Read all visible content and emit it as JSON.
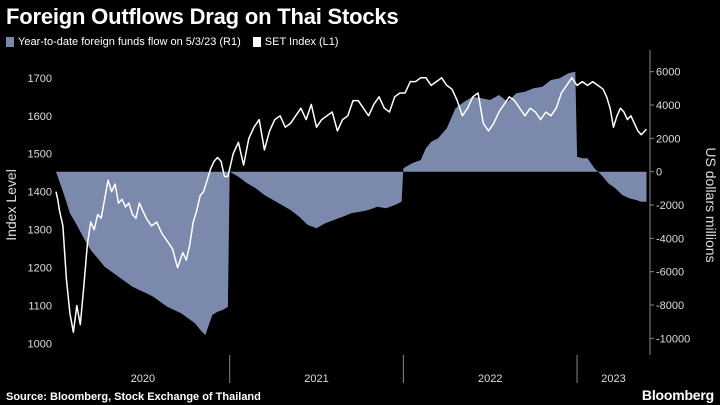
{
  "title": "Foreign Outflows Drag on Thai Stocks",
  "legend": {
    "fund_flow": "Year-to-date foreign funds flow on 5/3/23 (R1)",
    "set_index": "SET Index  (L1)"
  },
  "source": "Source: Bloomberg, Stock Exchange of Thailand",
  "brand": "Bloomberg",
  "colors": {
    "background": "#000000",
    "fund_flow_fill": "#7b8aac",
    "set_index_line": "#ffffff",
    "axis_text": "#dddddd"
  },
  "chart_data": {
    "type": "line",
    "left_axis": {
      "label": "Index Level",
      "ylim": [
        970,
        1760
      ],
      "ticks": [
        1000,
        1100,
        1200,
        1300,
        1400,
        1500,
        1600,
        1700
      ]
    },
    "right_axis": {
      "label": "US dollars millions",
      "ylim": [
        -11000,
        7000
      ],
      "ticks": [
        -10000,
        -8000,
        -6000,
        -4000,
        -2000,
        0,
        2000,
        4000,
        6000
      ]
    },
    "x_axis": {
      "range": [
        2020.0,
        2023.42
      ],
      "year_labels": [
        "2020",
        "2021",
        "2022",
        "2023"
      ],
      "year_starts": [
        2020,
        2021,
        2022,
        2023
      ]
    },
    "series": [
      {
        "name": "Year-to-date foreign funds flow on 5/3/23 (R1)",
        "type": "area",
        "axis": "right",
        "x": [
          2020.0,
          2020.02,
          2020.05,
          2020.08,
          2020.12,
          2020.16,
          2020.2,
          2020.24,
          2020.28,
          2020.32,
          2020.36,
          2020.4,
          2020.44,
          2020.48,
          2020.52,
          2020.56,
          2020.6,
          2020.64,
          2020.68,
          2020.72,
          2020.76,
          2020.8,
          2020.84,
          2020.86,
          2020.88,
          2020.9,
          2020.93,
          2020.96,
          2020.99,
          2021.0,
          2021.05,
          2021.1,
          2021.15,
          2021.2,
          2021.25,
          2021.3,
          2021.35,
          2021.4,
          2021.45,
          2021.5,
          2021.55,
          2021.6,
          2021.65,
          2021.7,
          2021.75,
          2021.8,
          2021.85,
          2021.9,
          2021.95,
          2021.99,
          2022.0,
          2022.05,
          2022.1,
          2022.13,
          2022.16,
          2022.2,
          2022.25,
          2022.3,
          2022.35,
          2022.4,
          2022.45,
          2022.5,
          2022.55,
          2022.6,
          2022.65,
          2022.7,
          2022.75,
          2022.8,
          2022.85,
          2022.9,
          2022.95,
          2022.99,
          2023.0,
          2023.03,
          2023.06,
          2023.1,
          2023.14,
          2023.18,
          2023.22,
          2023.26,
          2023.3,
          2023.34,
          2023.37,
          2023.4
        ],
        "values": [
          0,
          -600,
          -1500,
          -2500,
          -3200,
          -4000,
          -4700,
          -5200,
          -5700,
          -6000,
          -6300,
          -6600,
          -6900,
          -7100,
          -7300,
          -7500,
          -7800,
          -8100,
          -8300,
          -8500,
          -8800,
          -9100,
          -9600,
          -9800,
          -9200,
          -8600,
          -8400,
          -8300,
          -8100,
          0,
          -300,
          -700,
          -1000,
          -1400,
          -1700,
          -2000,
          -2300,
          -2700,
          -3200,
          -3400,
          -3100,
          -2900,
          -2700,
          -2500,
          -2400,
          -2300,
          -2100,
          -2200,
          -2000,
          -1800,
          200,
          500,
          700,
          1400,
          1800,
          2000,
          2600,
          3800,
          4200,
          4500,
          4400,
          4300,
          4600,
          4200,
          4700,
          4800,
          5000,
          5100,
          5500,
          5600,
          5900,
          6000,
          900,
          800,
          800,
          200,
          -200,
          -700,
          -1000,
          -1400,
          -1600,
          -1700,
          -1800,
          -1800
        ]
      },
      {
        "name": "SET Index  (L1)",
        "type": "line",
        "axis": "left",
        "x": [
          2020.0,
          2020.01,
          2020.02,
          2020.04,
          2020.06,
          2020.08,
          2020.1,
          2020.12,
          2020.14,
          2020.16,
          2020.18,
          2020.2,
          2020.22,
          2020.24,
          2020.26,
          2020.28,
          2020.3,
          2020.32,
          2020.34,
          2020.36,
          2020.38,
          2020.4,
          2020.42,
          2020.44,
          2020.46,
          2020.48,
          2020.5,
          2020.52,
          2020.55,
          2020.58,
          2020.61,
          2020.64,
          2020.67,
          2020.7,
          2020.73,
          2020.75,
          2020.77,
          2020.79,
          2020.81,
          2020.83,
          2020.85,
          2020.87,
          2020.89,
          2020.91,
          2020.93,
          2020.95,
          2020.97,
          2020.99,
          2021.02,
          2021.05,
          2021.08,
          2021.11,
          2021.14,
          2021.17,
          2021.2,
          2021.23,
          2021.26,
          2021.29,
          2021.32,
          2021.35,
          2021.38,
          2021.41,
          2021.44,
          2021.47,
          2021.5,
          2021.53,
          2021.56,
          2021.59,
          2021.62,
          2021.65,
          2021.68,
          2021.71,
          2021.74,
          2021.77,
          2021.8,
          2021.83,
          2021.86,
          2021.89,
          2021.92,
          2021.95,
          2021.98,
          2022.01,
          2022.04,
          2022.07,
          2022.1,
          2022.13,
          2022.16,
          2022.19,
          2022.22,
          2022.25,
          2022.28,
          2022.31,
          2022.34,
          2022.37,
          2022.4,
          2022.43,
          2022.46,
          2022.49,
          2022.52,
          2022.55,
          2022.58,
          2022.61,
          2022.64,
          2022.67,
          2022.7,
          2022.73,
          2022.76,
          2022.79,
          2022.82,
          2022.85,
          2022.88,
          2022.91,
          2022.94,
          2022.97,
          2023.0,
          2023.03,
          2023.06,
          2023.09,
          2023.12,
          2023.15,
          2023.17,
          2023.19,
          2023.21,
          2023.23,
          2023.25,
          2023.27,
          2023.29,
          2023.31,
          2023.33,
          2023.35,
          2023.37,
          2023.4
        ],
        "values": [
          1400,
          1380,
          1350,
          1310,
          1170,
          1080,
          1030,
          1100,
          1050,
          1150,
          1260,
          1320,
          1300,
          1340,
          1330,
          1380,
          1430,
          1400,
          1420,
          1370,
          1380,
          1360,
          1370,
          1340,
          1330,
          1370,
          1350,
          1330,
          1310,
          1320,
          1290,
          1270,
          1250,
          1200,
          1240,
          1220,
          1260,
          1320,
          1350,
          1390,
          1400,
          1430,
          1460,
          1480,
          1490,
          1480,
          1440,
          1440,
          1500,
          1530,
          1470,
          1540,
          1570,
          1590,
          1510,
          1560,
          1590,
          1600,
          1570,
          1580,
          1600,
          1620,
          1590,
          1630,
          1570,
          1590,
          1600,
          1610,
          1560,
          1590,
          1600,
          1640,
          1640,
          1620,
          1600,
          1630,
          1650,
          1620,
          1610,
          1650,
          1660,
          1660,
          1690,
          1690,
          1700,
          1700,
          1680,
          1690,
          1700,
          1680,
          1670,
          1640,
          1600,
          1620,
          1650,
          1660,
          1580,
          1560,
          1580,
          1610,
          1630,
          1650,
          1640,
          1620,
          1600,
          1620,
          1610,
          1590,
          1610,
          1600,
          1620,
          1660,
          1680,
          1700,
          1680,
          1690,
          1680,
          1690,
          1680,
          1670,
          1650,
          1620,
          1570,
          1600,
          1620,
          1610,
          1590,
          1600,
          1580,
          1560,
          1550,
          1565
        ]
      }
    ]
  }
}
